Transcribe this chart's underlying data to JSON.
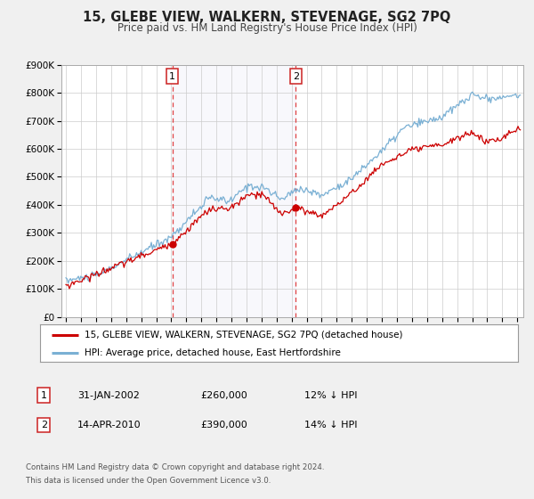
{
  "title": "15, GLEBE VIEW, WALKERN, STEVENAGE, SG2 7PQ",
  "subtitle": "Price paid vs. HM Land Registry's House Price Index (HPI)",
  "ylim": [
    0,
    900000
  ],
  "yticks": [
    0,
    100000,
    200000,
    300000,
    400000,
    500000,
    600000,
    700000,
    800000,
    900000
  ],
  "ytick_labels": [
    "£0",
    "£100K",
    "£200K",
    "£300K",
    "£400K",
    "£500K",
    "£600K",
    "£700K",
    "£800K",
    "£900K"
  ],
  "xlim_start": 1994.7,
  "xlim_end": 2025.4,
  "sale1_date": 2002.08,
  "sale1_price": 260000,
  "sale2_date": 2010.28,
  "sale2_price": 390000,
  "property_color": "#cc0000",
  "hpi_color": "#7ab0d4",
  "background_color": "#f0f0f0",
  "plot_bg_color": "#ffffff",
  "grid_color": "#cccccc",
  "title_fontsize": 10.5,
  "subtitle_fontsize": 8.5,
  "legend_label_property": "15, GLEBE VIEW, WALKERN, STEVENAGE, SG2 7PQ (detached house)",
  "legend_label_hpi": "HPI: Average price, detached house, East Hertfordshire",
  "annotation1_label": "1",
  "annotation1_date_str": "31-JAN-2002",
  "annotation1_price_str": "£260,000",
  "annotation1_pct_str": "12% ↓ HPI",
  "annotation2_label": "2",
  "annotation2_date_str": "14-APR-2010",
  "annotation2_price_str": "£390,000",
  "annotation2_pct_str": "14% ↓ HPI",
  "footer1": "Contains HM Land Registry data © Crown copyright and database right 2024.",
  "footer2": "This data is licensed under the Open Government Licence v3.0."
}
